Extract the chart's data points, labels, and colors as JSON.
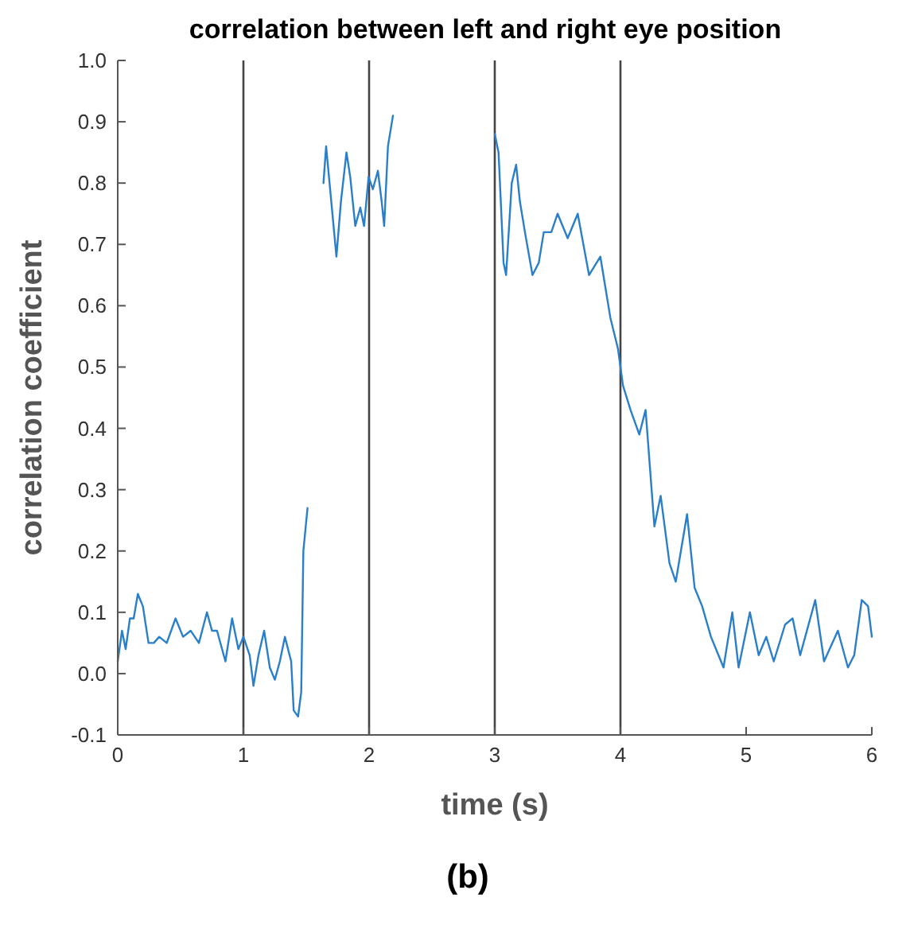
{
  "chart_data": {
    "type": "line",
    "title": "correlation between left and right eye position",
    "xlabel": "time (s)",
    "ylabel": "correlation coefficient",
    "annotations": [
      "(b)"
    ],
    "xlim": [
      0,
      6
    ],
    "xticks": [
      0,
      1,
      2,
      3,
      4,
      5,
      6
    ],
    "ylim": [
      -0.1,
      1
    ],
    "yticks": [
      {
        "value": -0.1,
        "label": "-0.1"
      },
      {
        "value": 0,
        "label": "0.0"
      },
      {
        "value": 0.1,
        "label": "0.1"
      },
      {
        "value": 0.2,
        "label": "0.2"
      },
      {
        "value": 0.3,
        "label": "0.3"
      },
      {
        "value": 0.4,
        "label": "0.4"
      },
      {
        "value": 0.5,
        "label": "0.5"
      },
      {
        "value": 0.6,
        "label": "0.6"
      },
      {
        "value": 0.7,
        "label": "0.7"
      },
      {
        "value": 0.8,
        "label": "0.8"
      },
      {
        "value": 0.9,
        "label": "0.9"
      },
      {
        "value": 1,
        "label": "1.0"
      }
    ],
    "grid": false,
    "line_style": "solid",
    "marker": "none",
    "ref_lines": [
      {
        "axis": "x",
        "value": 1,
        "color": "#444444"
      },
      {
        "axis": "x",
        "value": 2,
        "color": "#444444"
      },
      {
        "axis": "x",
        "value": 3,
        "color": "#444444"
      },
      {
        "axis": "x",
        "value": 4,
        "color": "#444444"
      }
    ],
    "series": [
      {
        "color": "#2a7fca",
        "x": [
          0,
          0.034,
          0.063,
          0.097,
          0.127,
          0.16,
          0.2,
          0.245,
          0.287,
          0.33,
          0.39,
          0.46,
          0.52,
          0.58,
          0.646,
          0.71,
          0.75,
          0.79,
          0.857,
          0.91,
          0.96,
          1.0,
          1.05,
          1.08,
          1.12,
          1.165,
          1.21,
          1.25,
          1.29,
          1.33,
          1.38,
          1.4,
          1.435,
          1.46,
          1.477,
          1.51,
          1.57,
          1.637,
          1.658,
          1.69,
          1.74,
          1.776,
          1.82,
          1.85,
          1.89,
          1.93,
          1.96,
          1.996,
          2.03,
          2.07,
          2.1,
          2.12,
          2.15,
          2.19,
          2.6,
          3.0,
          3.03,
          3.07,
          3.09,
          3.135,
          3.17,
          3.2,
          3.24,
          3.3,
          3.35,
          3.39,
          3.45,
          3.5,
          3.58,
          3.66,
          3.75,
          3.84,
          3.92,
          3.98,
          4.02,
          4.08,
          4.15,
          4.2,
          4.27,
          4.32,
          4.39,
          4.44,
          4.53,
          4.59,
          4.65,
          4.72,
          4.78,
          4.82,
          4.89,
          4.94,
          5.03,
          5.1,
          5.16,
          5.22,
          5.31,
          5.37,
          5.43,
          5.55,
          5.62,
          5.73,
          5.81,
          5.86,
          5.92,
          5.97,
          6.0
        ],
        "values": [
          0.02,
          0.07,
          0.04,
          0.09,
          0.09,
          0.13,
          0.11,
          0.05,
          0.05,
          0.06,
          0.05,
          0.09,
          0.06,
          0.07,
          0.05,
          0.1,
          0.07,
          0.07,
          0.02,
          0.09,
          0.04,
          0.06,
          0.03,
          -0.02,
          0.03,
          0.07,
          0.01,
          -0.01,
          0.02,
          0.06,
          0.02,
          -0.06,
          -0.07,
          -0.03,
          0.2,
          0.27,
          null,
          0.8,
          0.86,
          0.79,
          0.68,
          0.77,
          0.85,
          0.81,
          0.73,
          0.76,
          0.73,
          0.81,
          0.79,
          0.82,
          0.77,
          0.73,
          0.86,
          0.91,
          null,
          0.88,
          0.85,
          0.67,
          0.65,
          0.8,
          0.83,
          0.77,
          0.72,
          0.65,
          0.67,
          0.72,
          0.72,
          0.75,
          0.71,
          0.75,
          0.65,
          0.68,
          0.58,
          0.53,
          0.47,
          0.43,
          0.39,
          0.43,
          0.24,
          0.29,
          0.18,
          0.15,
          0.26,
          0.14,
          0.11,
          0.06,
          0.03,
          0.01,
          0.1,
          0.01,
          0.1,
          0.03,
          0.06,
          0.02,
          0.08,
          0.09,
          0.03,
          0.12,
          0.02,
          0.07,
          0.01,
          0.03,
          0.12,
          0.11,
          0.06
        ]
      }
    ]
  }
}
